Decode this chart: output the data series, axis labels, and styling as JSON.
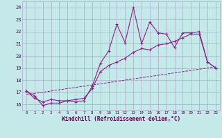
{
  "xlabel": "Windchill (Refroidissement éolien,°C)",
  "bg_color": "#c5e8e8",
  "grid_color": "#aaaacc",
  "line_color": "#882288",
  "x_ticks": [
    0,
    1,
    2,
    3,
    4,
    5,
    6,
    7,
    8,
    9,
    10,
    11,
    12,
    13,
    14,
    15,
    16,
    17,
    18,
    19,
    20,
    21,
    22,
    23
  ],
  "y_ticks": [
    16,
    17,
    18,
    19,
    20,
    21,
    22,
    23,
    24
  ],
  "ylim": [
    15.5,
    24.5
  ],
  "xlim": [
    -0.5,
    23.5
  ],
  "series1_x": [
    0,
    1,
    2,
    3,
    4,
    5,
    6,
    7,
    8,
    9,
    10,
    11,
    12,
    13,
    14,
    15,
    16,
    17,
    18,
    19,
    20,
    21,
    22,
    23
  ],
  "series1_y": [
    17.1,
    16.7,
    15.9,
    16.1,
    16.1,
    16.3,
    16.2,
    16.3,
    17.5,
    19.4,
    20.4,
    22.6,
    21.1,
    24.0,
    21.0,
    22.8,
    21.9,
    21.8,
    20.7,
    21.9,
    21.9,
    22.0,
    19.5,
    19.0
  ],
  "series2_x": [
    0,
    1,
    2,
    3,
    4,
    5,
    6,
    7,
    8,
    9,
    10,
    11,
    12,
    13,
    14,
    15,
    16,
    17,
    18,
    19,
    20,
    21,
    22,
    23
  ],
  "series2_y": [
    17.1,
    16.5,
    16.2,
    16.4,
    16.3,
    16.3,
    16.4,
    16.5,
    17.3,
    18.7,
    19.2,
    19.5,
    19.8,
    20.3,
    20.6,
    20.5,
    20.9,
    21.0,
    21.2,
    21.5,
    21.8,
    21.8,
    19.5,
    19.0
  ],
  "series3_x": [
    0,
    23
  ],
  "series3_y": [
    16.8,
    19.1
  ]
}
